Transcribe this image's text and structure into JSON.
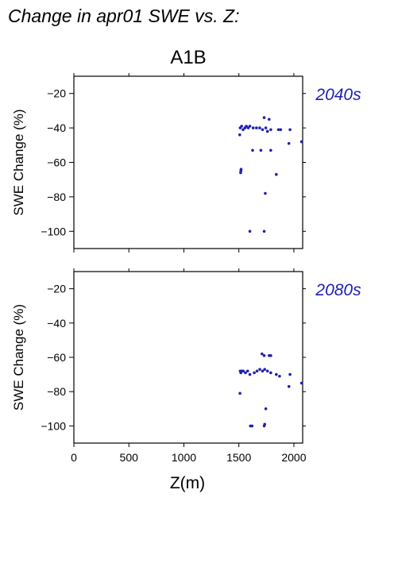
{
  "page_title": "Change in apr01 SWE vs. Z:",
  "scenario": "A1B",
  "colors": {
    "points": "#2020b0",
    "period_label": "#2020b0",
    "axes": "#000000"
  },
  "chart_data": [
    {
      "type": "scatter",
      "period_label": "2040s",
      "xlabel": "",
      "ylabel": "SWE Change (%)",
      "xlim": [
        0,
        2080
      ],
      "ylim": [
        -110,
        -10
      ],
      "xticks": [
        0,
        500,
        1000,
        1500,
        2000
      ],
      "yticks": [
        -20,
        -40,
        -60,
        -80,
        -100
      ],
      "x_tick_labels_visible": false,
      "points": [
        [
          1512,
          -40
        ],
        [
          1508,
          -44
        ],
        [
          1525,
          -39
        ],
        [
          1538,
          -41
        ],
        [
          1555,
          -40
        ],
        [
          1568,
          -39
        ],
        [
          1585,
          -40
        ],
        [
          1600,
          -39
        ],
        [
          1630,
          -40
        ],
        [
          1660,
          -40
        ],
        [
          1690,
          -40
        ],
        [
          1715,
          -41
        ],
        [
          1730,
          -34
        ],
        [
          1745,
          -40
        ],
        [
          1760,
          -42
        ],
        [
          1775,
          -35
        ],
        [
          1790,
          -41
        ],
        [
          1860,
          -41
        ],
        [
          1880,
          -41
        ],
        [
          1965,
          -41
        ],
        [
          2070,
          -48
        ],
        [
          1955,
          -49
        ],
        [
          1625,
          -53
        ],
        [
          1700,
          -53
        ],
        [
          1790,
          -53
        ],
        [
          1840,
          -67
        ],
        [
          1520,
          -64
        ],
        [
          1518,
          -65
        ],
        [
          1516,
          -66
        ],
        [
          1740,
          -78
        ],
        [
          1600,
          -100
        ],
        [
          1730,
          -100
        ]
      ]
    },
    {
      "type": "scatter",
      "period_label": "2080s",
      "xlabel": "Z(m)",
      "ylabel": "SWE Change (%)",
      "xlim": [
        0,
        2080
      ],
      "ylim": [
        -110,
        -10
      ],
      "xticks": [
        0,
        500,
        1000,
        1500,
        2000
      ],
      "xtick_labels": [
        "0",
        "500",
        "1000",
        "1500",
        "2000"
      ],
      "yticks": [
        -20,
        -40,
        -60,
        -80,
        -100
      ],
      "points": [
        [
          1512,
          -68
        ],
        [
          1518,
          -69
        ],
        [
          1525,
          -68
        ],
        [
          1540,
          -68
        ],
        [
          1560,
          -69
        ],
        [
          1580,
          -68
        ],
        [
          1600,
          -70
        ],
        [
          1640,
          -69
        ],
        [
          1665,
          -68
        ],
        [
          1690,
          -67
        ],
        [
          1715,
          -68
        ],
        [
          1735,
          -67
        ],
        [
          1760,
          -68
        ],
        [
          1790,
          -69
        ],
        [
          1840,
          -70
        ],
        [
          1870,
          -71
        ],
        [
          1965,
          -70
        ],
        [
          2070,
          -75
        ],
        [
          1955,
          -77
        ],
        [
          1510,
          -81
        ],
        [
          1710,
          -58
        ],
        [
          1730,
          -59
        ],
        [
          1775,
          -59
        ],
        [
          1790,
          -59
        ],
        [
          1745,
          -90
        ],
        [
          1605,
          -100
        ],
        [
          1620,
          -100
        ],
        [
          1730,
          -100
        ],
        [
          1735,
          -99
        ]
      ]
    }
  ]
}
